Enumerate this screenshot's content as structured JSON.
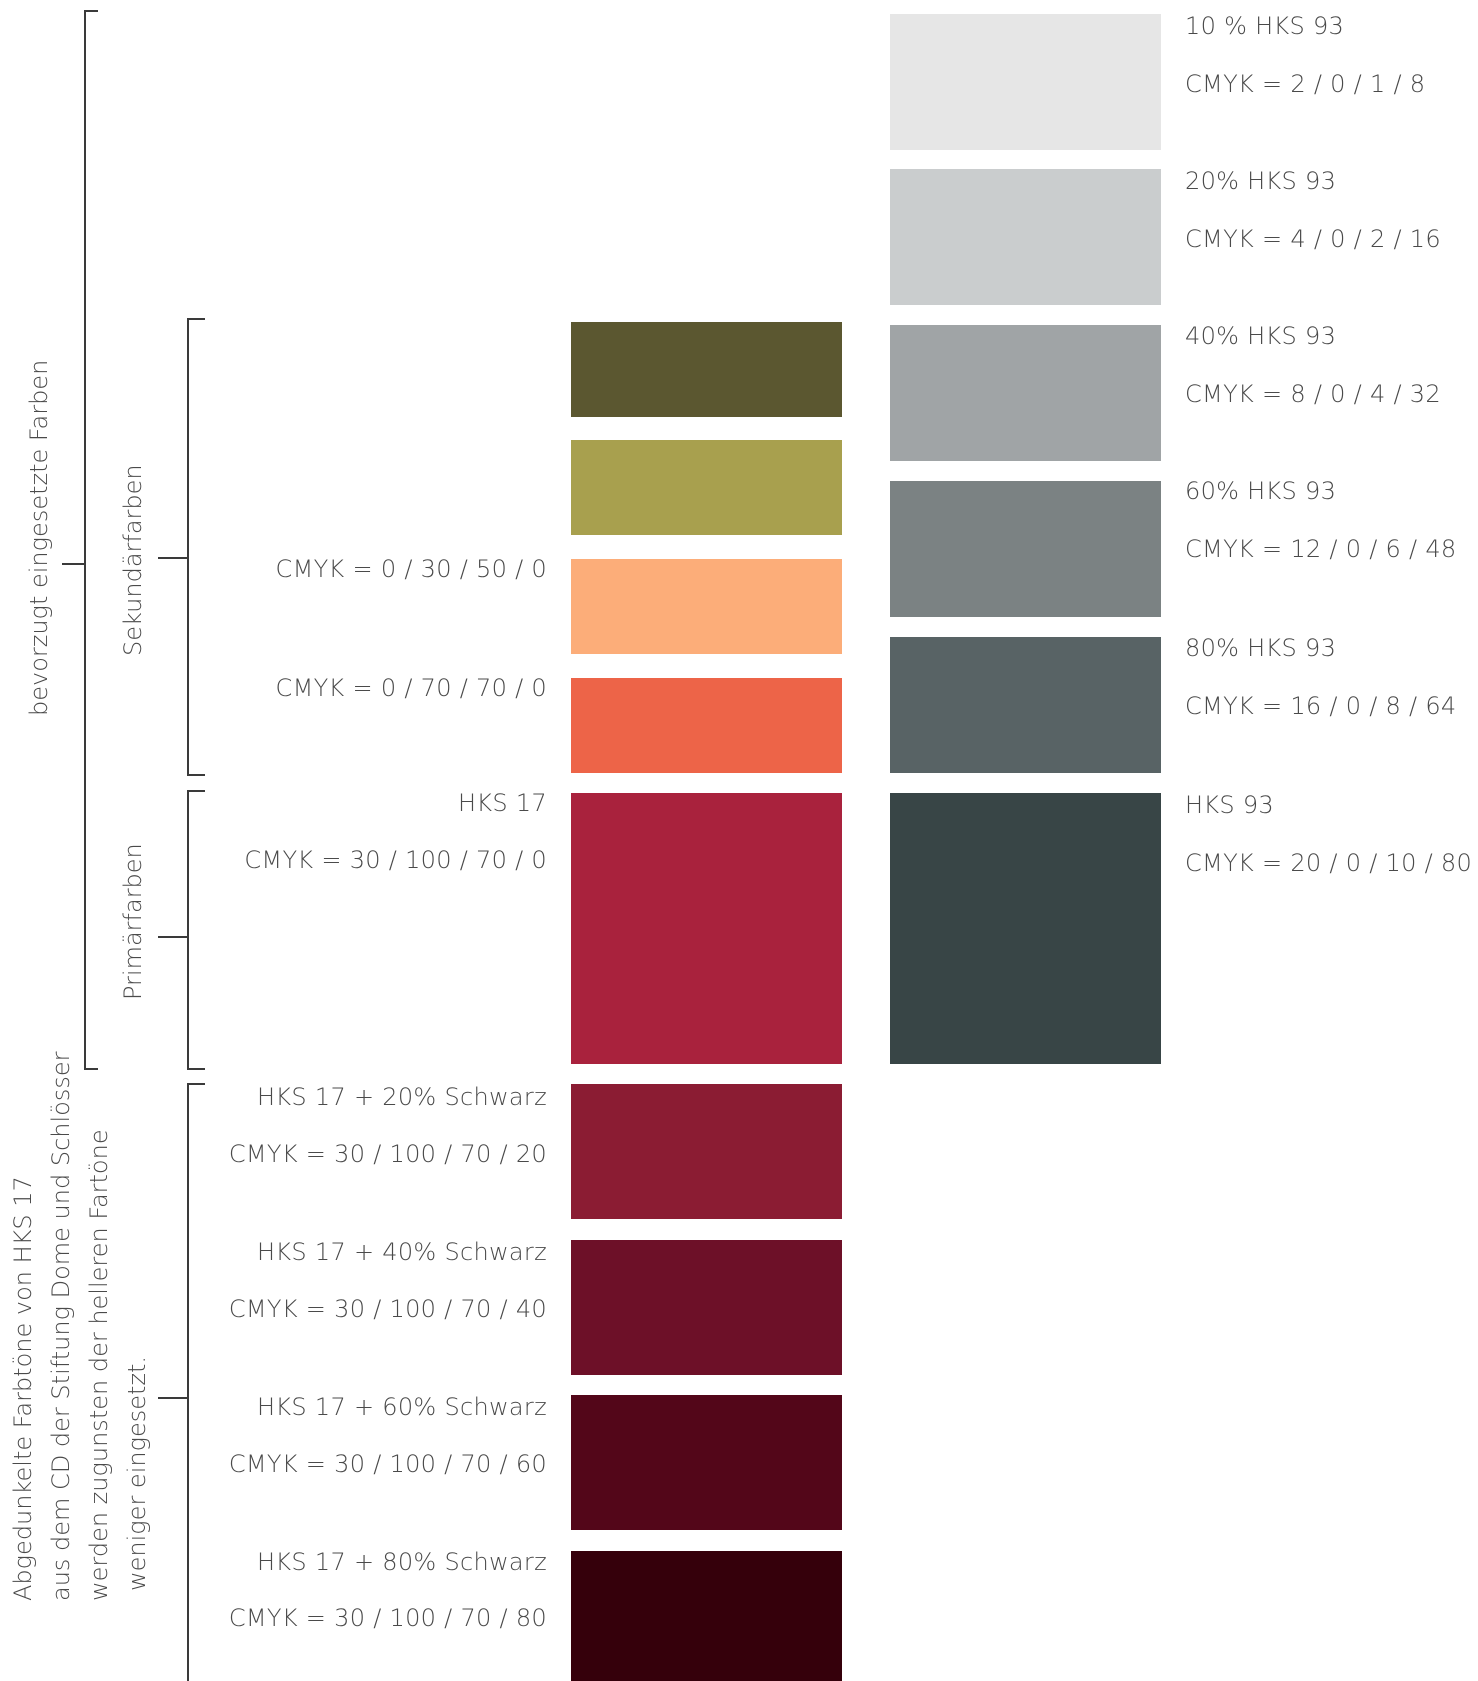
{
  "brackets": {
    "preferred": "bevorzugt eingesetzte Farben",
    "secondary": "Sekundärfarben",
    "primary": "Primärfarben",
    "darkened_note": [
      "Abgedunkelte Farbtöne von HKS 17",
      "aus dem CD der Stiftung Dome und Schlösser",
      "werden zugunsten der helleren Fartöne",
      "weniger eingesetzt."
    ]
  },
  "gray_column": [
    {
      "name": "10 % HKS 93",
      "cmyk": "CMYK = 2 / 0 / 1 / 8",
      "color": "#e6e6e6"
    },
    {
      "name": "20% HKS 93",
      "cmyk": "CMYK = 4 / 0 / 2 / 16",
      "color": "#cacdce"
    },
    {
      "name": "40% HKS 93",
      "cmyk": "CMYK = 8 / 0 / 4 / 32",
      "color": "#a0a4a6"
    },
    {
      "name": "60% HKS 93",
      "cmyk": "CMYK = 12 / 0 / 6 / 48",
      "color": "#7b8283"
    },
    {
      "name": "80% HKS 93",
      "cmyk": "CMYK = 16 / 0 / 8 / 64",
      "color": "#586365"
    },
    {
      "name": "HKS 93",
      "cmyk": "CMYK = 20 / 0 / 10 / 80",
      "color": "#384546"
    }
  ],
  "secondary_column": [
    {
      "cmyk": "",
      "color": "#5b5730"
    },
    {
      "cmyk": "",
      "color": "#a8a04e"
    },
    {
      "cmyk": "CMYK = 0 / 30 / 50 / 0",
      "color": "#fcad79"
    },
    {
      "cmyk": "CMYK = 0 / 70 / 70 / 0",
      "color": "#ed6448"
    }
  ],
  "primary_swatch": {
    "name": "HKS 17",
    "cmyk": "CMYK = 30 / 100 / 70 / 0",
    "color": "#a9223d"
  },
  "dark_column": [
    {
      "name": "HKS 17 + 20% Schwarz",
      "cmyk": "CMYK = 30 / 100 / 70 / 20",
      "color": "#8b1c33"
    },
    {
      "name": "HKS 17 + 40% Schwarz",
      "cmyk": "CMYK = 30 / 100 / 70 / 40",
      "color": "#6d1028"
    },
    {
      "name": "HKS 17 + 60% Schwarz",
      "cmyk": "CMYK = 30 / 100 / 70 / 60",
      "color": "#530619"
    },
    {
      "name": "HKS 17 + 80% Schwarz",
      "cmyk": "CMYK = 30 / 100 / 70 / 80",
      "color": "#35000b"
    }
  ]
}
